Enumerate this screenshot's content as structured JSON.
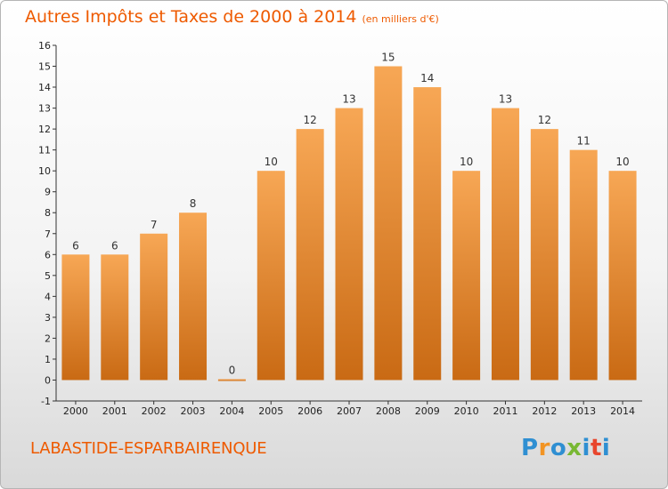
{
  "header": {
    "title": "Autres Impôts et Taxes de 2000 à 2014",
    "subtitle": "(en milliers d'€)"
  },
  "footer": {
    "commune": "LABASTIDE-ESPARBAIRENQUE",
    "logo": "Proxiti"
  },
  "colors": {
    "accent": "#ee5a00",
    "bar_top": "#f7a755",
    "bar_bottom": "#c96a14",
    "logo_letters": [
      "#2f8fd2",
      "#f29423",
      "#2f8fd2",
      "#78b833",
      "#2f8fd2",
      "#e8462d",
      "#2f8fd2"
    ]
  },
  "chart_data": {
    "type": "bar",
    "categories": [
      "2000",
      "2001",
      "2002",
      "2003",
      "2004",
      "2005",
      "2006",
      "2007",
      "2008",
      "2009",
      "2010",
      "2011",
      "2012",
      "2013",
      "2014"
    ],
    "values": [
      6,
      6,
      7,
      8,
      0,
      10,
      12,
      13,
      15,
      14,
      10,
      13,
      12,
      11,
      10
    ],
    "ylim": [
      -1,
      16
    ],
    "yticks": [
      -1,
      0,
      1,
      2,
      3,
      4,
      5,
      6,
      7,
      8,
      9,
      10,
      11,
      12,
      13,
      14,
      15,
      16
    ],
    "grid": false,
    "data_labels": true
  }
}
